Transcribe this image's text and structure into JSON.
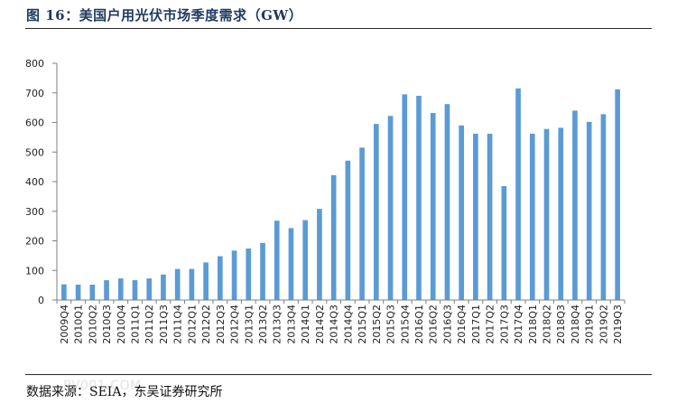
{
  "header": {
    "title": "图 16：美国户用光伏市场季度需求（GW）"
  },
  "footer": {
    "source": "数据来源：SEIA，东吴证券研究所",
    "watermark": "PV001.COM"
  },
  "colors": {
    "bar": "#5b9bd5",
    "axis": "#7f7f7f",
    "rule": "#2a2a2a",
    "title": "#1f3a5f"
  },
  "chart_data": {
    "type": "bar",
    "title": "",
    "xlabel": "",
    "ylabel": "",
    "ylim": [
      0,
      800
    ],
    "yticks": [
      0,
      100,
      200,
      300,
      400,
      500,
      600,
      700,
      800
    ],
    "grid": false,
    "legend": "none",
    "categories": [
      "2009Q4",
      "2010Q1",
      "2010Q2",
      "2010Q3",
      "2010Q4",
      "2011Q1",
      "2011Q2",
      "2011Q3",
      "2011Q4",
      "2012Q1",
      "2012Q2",
      "2012Q3",
      "2012Q4",
      "2013Q1",
      "2013Q2",
      "2013Q3",
      "2013Q4",
      "2014Q1",
      "2014Q2",
      "2014Q3",
      "2014Q4",
      "2015Q1",
      "2015Q2",
      "2015Q3",
      "2015Q4",
      "2016Q1",
      "2016Q2",
      "2016Q3",
      "2016Q4",
      "2017Q1",
      "2017Q2",
      "2017Q3",
      "2017Q4",
      "2018Q1",
      "2018Q2",
      "2018Q3",
      "2018Q4",
      "2019Q1",
      "2019Q2",
      "2019Q3"
    ],
    "values": [
      53,
      52,
      52,
      67,
      73,
      67,
      73,
      86,
      105,
      105,
      127,
      148,
      167,
      174,
      193,
      268,
      243,
      270,
      308,
      422,
      471,
      515,
      595,
      622,
      695,
      690,
      632,
      662,
      590,
      562,
      562,
      385,
      715,
      562,
      578,
      582,
      640,
      602,
      628,
      712
    ]
  }
}
